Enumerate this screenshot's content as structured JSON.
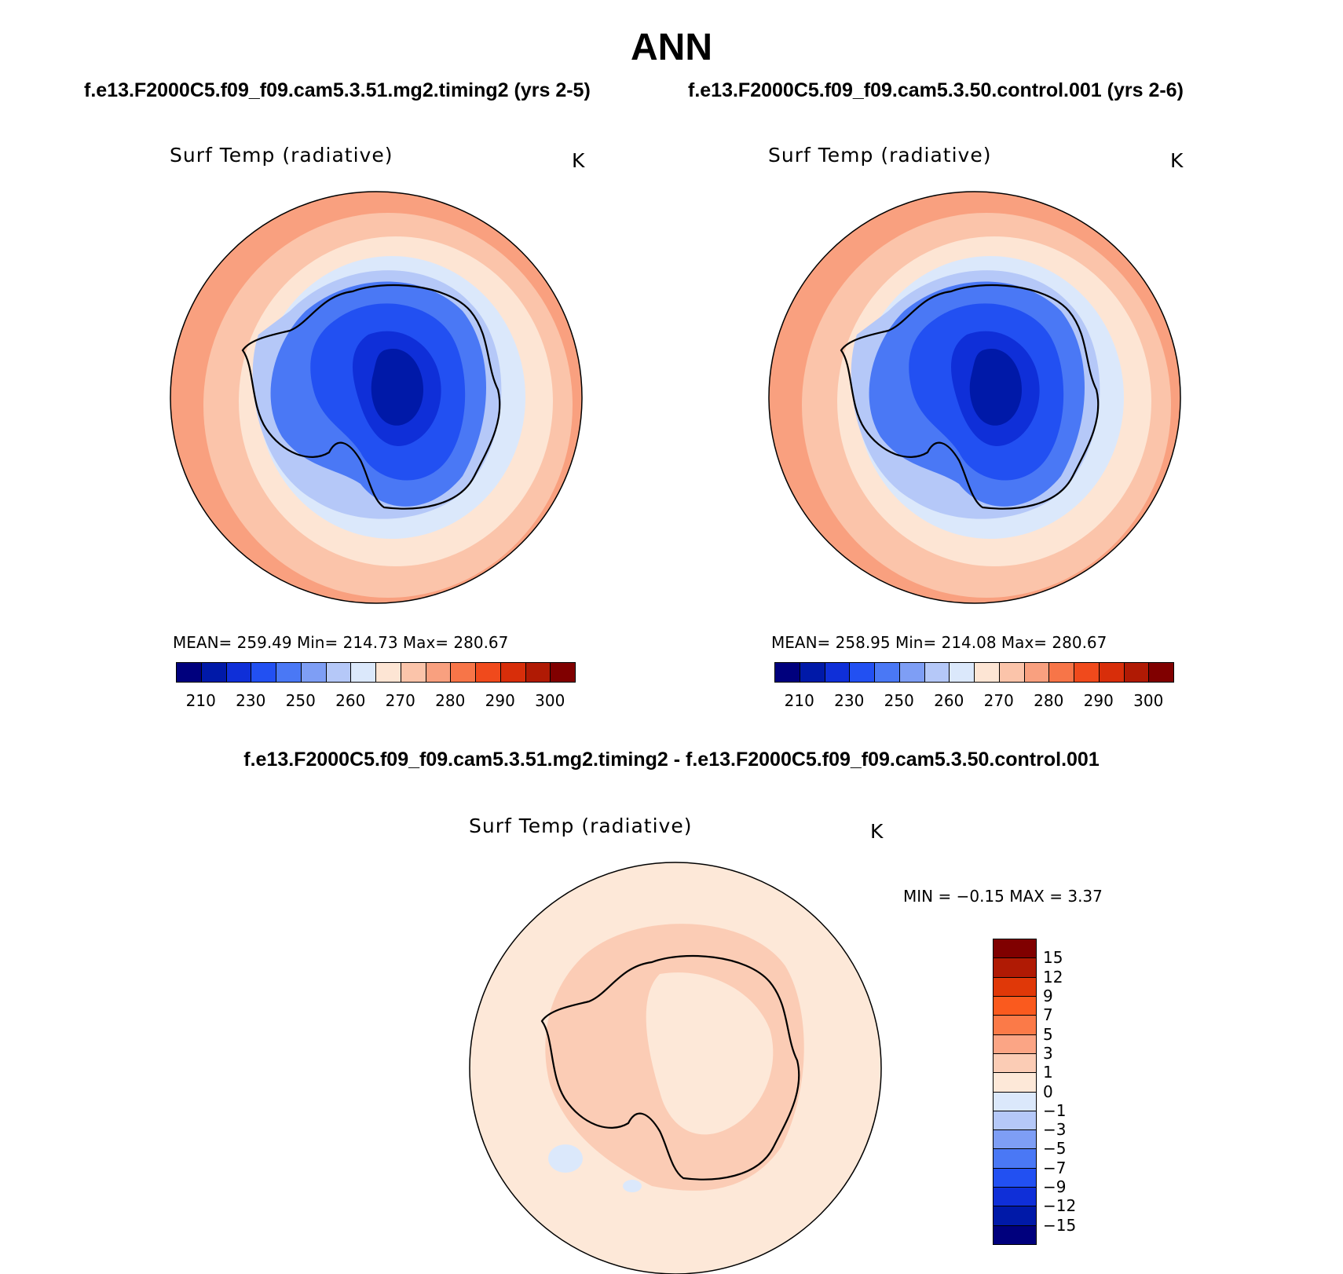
{
  "title": "ANN",
  "case_titles": [
    "f.e13.F2000C5.f09_f09.cam5.3.51.mg2.timing2 (yrs 2-5)",
    "f.e13.F2000C5.f09_f09.cam5.3.50.control.001 (yrs 2-6)"
  ],
  "diff_title": "f.e13.F2000C5.f09_f09.cam5.3.51.mg2.timing2 - f.e13.F2000C5.f09_f09.cam5.3.50.control.001",
  "panels": [
    {
      "variable": "Surf Temp (radiative)",
      "units": "K",
      "stats": "MEAN=  259.49    Min=  214.73    Max=  280.67"
    },
    {
      "variable": "Surf Temp (radiative)",
      "units": "K",
      "stats": "MEAN=  258.95    Min=  214.08    Max=  280.67"
    }
  ],
  "diff_panel": {
    "variable": "Surf Temp (radiative)",
    "units": "K",
    "stats": "MIN =    −0.15  MAX =     3.37"
  },
  "abs_colorbar": {
    "tick_labels": [
      "210",
      "230",
      "250",
      "260",
      "270",
      "280",
      "290",
      "300"
    ],
    "colors": [
      "#00007d",
      "#0019a8",
      "#0f2fd8",
      "#2250f2",
      "#4a78f5",
      "#7e9ef5",
      "#b5c8f8",
      "#dbe8fb",
      "#fde5d4",
      "#fbc4aa",
      "#f9a07f",
      "#f77548",
      "#f04a1c",
      "#d82e0a",
      "#b01a04",
      "#800000"
    ]
  },
  "diff_colorbar": {
    "tick_labels": [
      "15",
      "12",
      "9",
      "7",
      "5",
      "3",
      "1",
      "0",
      "−1",
      "−3",
      "−5",
      "−7",
      "−9",
      "−12",
      "−15"
    ],
    "colors": [
      "#800000",
      "#b01a04",
      "#e03808",
      "#fa5a1e",
      "#fb7a48",
      "#fba585",
      "#fbccb5",
      "#fde8d8",
      "#dbe8fb",
      "#b5c8f8",
      "#7e9ef5",
      "#4a78f5",
      "#2250f2",
      "#0f2fd8",
      "#0019a8",
      "#00007d"
    ]
  }
}
